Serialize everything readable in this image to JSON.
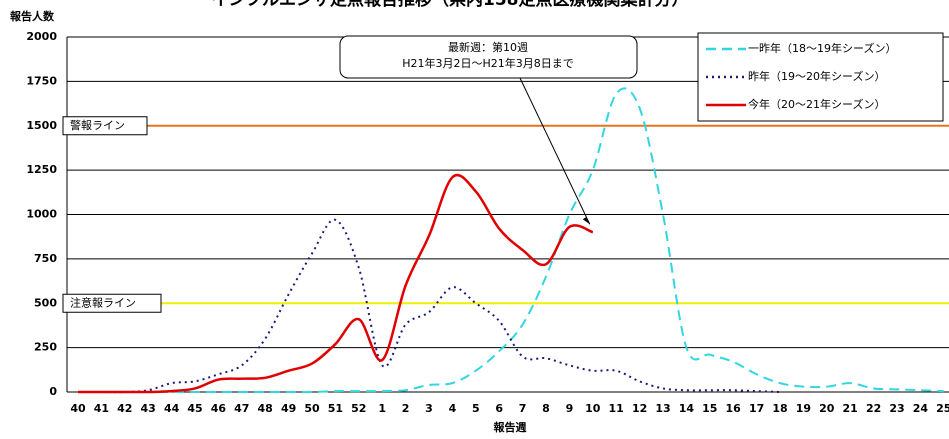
{
  "chart_data": {
    "type": "line",
    "title": "インフルエンザ定点報告推移（県内158定点医療機関集計分）",
    "y_label": "報告人数",
    "x_label": "報告週",
    "categories": [
      "40",
      "41",
      "42",
      "43",
      "44",
      "45",
      "46",
      "47",
      "48",
      "49",
      "50",
      "51",
      "52",
      "1",
      "2",
      "3",
      "4",
      "5",
      "6",
      "7",
      "8",
      "9",
      "10",
      "11",
      "12",
      "13",
      "14",
      "15",
      "16",
      "17",
      "18",
      "19",
      "20",
      "21",
      "22",
      "23",
      "24",
      "25"
    ],
    "ylim": [
      0,
      2000
    ],
    "yticks": [
      0,
      250,
      500,
      750,
      1000,
      1250,
      1500,
      1750,
      2000
    ],
    "grid": true,
    "smooth": true,
    "legend": "upper right",
    "reference_lines": [
      {
        "label": "警報ライン",
        "value": 1500,
        "color": "#e8741e"
      },
      {
        "label": "注意報ライン",
        "value": 500,
        "color": "#f0f000"
      }
    ],
    "annotation": {
      "lines": [
        "最新週：第10週",
        "H21年3月2日～H21年3月8日まで"
      ],
      "target": 22
    },
    "series": [
      {
        "name": "一昨年（18～19年シーズン）",
        "color": "#33d6e0",
        "dash": "10,6",
        "values": [
          0,
          0,
          0,
          0,
          0,
          0,
          0,
          0,
          0,
          0,
          0,
          5,
          5,
          5,
          10,
          40,
          50,
          120,
          230,
          380,
          650,
          1000,
          1250,
          1680,
          1600,
          1000,
          250,
          210,
          170,
          100,
          50,
          30,
          30,
          50,
          20,
          15,
          10,
          5
        ]
      },
      {
        "name": "昨年（19～20年シーズン）",
        "color": "#1a1a7a",
        "dash": "2,4",
        "values": [
          0,
          0,
          0,
          10,
          50,
          60,
          100,
          150,
          300,
          550,
          780,
          970,
          700,
          150,
          380,
          450,
          590,
          500,
          400,
          200,
          190,
          150,
          120,
          120,
          60,
          20,
          10,
          10,
          10,
          5,
          0,
          null,
          null,
          null,
          null,
          null,
          null,
          null
        ]
      },
      {
        "name": "今年（20～21年シーズン）",
        "color": "#e00000",
        "dash": "",
        "values": [
          0,
          0,
          0,
          0,
          5,
          20,
          70,
          75,
          80,
          120,
          160,
          270,
          410,
          180,
          600,
          880,
          1210,
          1130,
          920,
          800,
          720,
          930,
          900,
          null,
          null,
          null,
          null,
          null,
          null,
          null,
          null,
          null,
          null,
          null,
          null,
          null,
          null,
          null
        ]
      }
    ]
  }
}
